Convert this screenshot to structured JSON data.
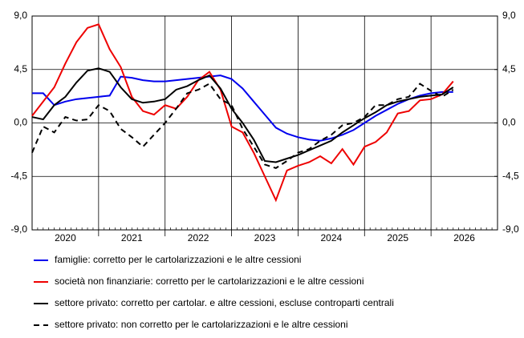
{
  "chart_data": {
    "type": "line",
    "x": [
      0,
      2,
      4,
      6,
      8,
      10,
      12,
      14,
      16,
      18,
      20,
      22,
      24,
      26,
      28,
      30,
      32,
      34,
      36,
      38,
      40,
      42,
      44,
      46,
      48,
      50,
      52,
      54,
      56,
      58,
      60,
      62,
      64,
      66,
      68,
      70,
      72,
      74,
      76
    ],
    "xlim": [
      0,
      84
    ],
    "xticks": [
      {
        "value": 6,
        "label": "2020"
      },
      {
        "value": 18,
        "label": "2021"
      },
      {
        "value": 30,
        "label": "2022"
      },
      {
        "value": 42,
        "label": "2023"
      },
      {
        "value": 54,
        "label": "2024"
      },
      {
        "value": 66,
        "label": "2025"
      },
      {
        "value": 78,
        "label": "2026"
      }
    ],
    "xgrid": [
      12,
      24,
      36,
      48,
      60,
      72
    ],
    "ylim": [
      -9,
      9
    ],
    "yticks": [
      {
        "value": 9,
        "label": "9,0"
      },
      {
        "value": 4.5,
        "label": "4,5"
      },
      {
        "value": 0,
        "label": "0,0"
      },
      {
        "value": -4.5,
        "label": "-4,5"
      },
      {
        "value": -9,
        "label": "-9,0"
      }
    ],
    "y2lim": [
      -9,
      9
    ],
    "y2ticks": [
      {
        "value": 9,
        "label": "9,0"
      },
      {
        "value": 4.5,
        "label": "4,5"
      },
      {
        "value": 0,
        "label": "0,0"
      },
      {
        "value": -4.5,
        "label": "-4,5"
      },
      {
        "value": -9,
        "label": "-9,0"
      }
    ],
    "grid": true,
    "series": [
      {
        "name": "famiglie: corretto per le cartolarizzazioni e le altre cessioni",
        "color": "#0000ee",
        "dash": false,
        "values": [
          2.5,
          2.5,
          1.5,
          1.8,
          2.0,
          2.1,
          2.2,
          2.3,
          3.9,
          3.8,
          3.6,
          3.5,
          3.5,
          3.6,
          3.7,
          3.8,
          3.9,
          4.0,
          3.7,
          2.9,
          1.8,
          0.7,
          -0.4,
          -0.9,
          -1.2,
          -1.4,
          -1.5,
          -1.3,
          -1.0,
          -0.6,
          0.0,
          0.6,
          1.1,
          1.6,
          2.0,
          2.3,
          2.5,
          2.6,
          2.6
        ]
      },
      {
        "name": "società non finanziarie: corretto per le cartolarizzazioni e le altre cessioni",
        "color": "#ee0000",
        "dash": false,
        "values": [
          0.6,
          1.8,
          3.0,
          5.0,
          6.8,
          8.0,
          8.3,
          6.2,
          4.7,
          2.2,
          1.0,
          0.7,
          1.5,
          1.2,
          2.2,
          3.6,
          4.3,
          2.8,
          -0.3,
          -0.8,
          -2.5,
          -4.5,
          -6.5,
          -4.0,
          -3.6,
          -3.3,
          -2.8,
          -3.4,
          -2.2,
          -3.5,
          -2.0,
          -1.6,
          -0.8,
          0.8,
          1.0,
          1.9,
          2.0,
          2.4,
          3.5
        ]
      },
      {
        "name": "settore privato: corretto per cartolar. e altre cessioni, escluse controparti centrali",
        "color": "#000000",
        "dash": false,
        "values": [
          0.5,
          0.3,
          1.5,
          2.2,
          3.4,
          4.4,
          4.6,
          4.3,
          3.0,
          2.0,
          1.7,
          1.8,
          2.0,
          2.8,
          3.1,
          3.6,
          4.0,
          2.9,
          1.2,
          0.0,
          -1.4,
          -3.2,
          -3.3,
          -3.0,
          -2.7,
          -2.3,
          -1.9,
          -1.5,
          -0.8,
          -0.2,
          0.4,
          0.9,
          1.5,
          1.8,
          2.0,
          2.2,
          2.3,
          2.4,
          3.0
        ]
      },
      {
        "name": "settore privato: non corretto per le cartolarizzazioni e le altre cessioni",
        "color": "#000000",
        "dash": true,
        "values": [
          -2.5,
          -0.3,
          -0.8,
          0.5,
          0.2,
          0.3,
          1.5,
          1.0,
          -0.5,
          -1.2,
          -2.0,
          -1.0,
          0.0,
          1.2,
          2.5,
          2.8,
          3.3,
          2.0,
          1.5,
          -0.5,
          -2.0,
          -3.5,
          -3.8,
          -3.2,
          -2.5,
          -2.2,
          -1.5,
          -1.0,
          -0.2,
          0.0,
          0.5,
          1.5,
          1.5,
          2.0,
          2.2,
          3.3,
          2.7,
          2.2,
          2.8
        ]
      }
    ]
  }
}
